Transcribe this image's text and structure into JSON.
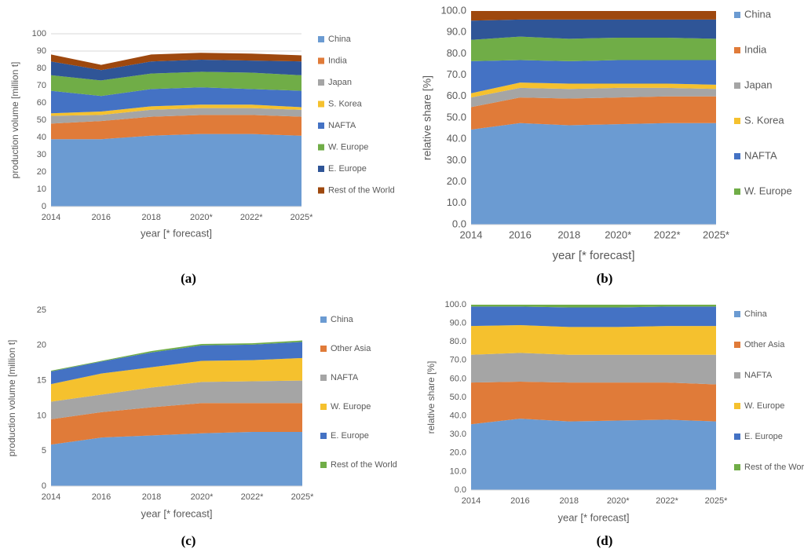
{
  "chart_data": [
    {
      "type": "area",
      "stacked": true,
      "caption": "(a)",
      "xlabel": "year [* forecast]",
      "ylabel": "production volume [million t]",
      "categories": [
        "2014",
        "2016",
        "2018",
        "2020*",
        "2022*",
        "2025*"
      ],
      "ylim": [
        0,
        100
      ],
      "yticks": [
        0,
        10,
        20,
        30,
        40,
        50,
        60,
        70,
        80,
        90,
        100
      ],
      "grid": true,
      "series": [
        {
          "name": "China",
          "color": "#6b9bd2",
          "values": [
            39,
            39,
            41,
            42,
            42,
            41
          ]
        },
        {
          "name": "India",
          "color": "#e07b39",
          "values": [
            9,
            10.5,
            11,
            11,
            11,
            11
          ]
        },
        {
          "name": "Japan",
          "color": "#a5a5a5",
          "values": [
            4.5,
            3.5,
            4,
            4,
            4,
            4
          ]
        },
        {
          "name": "S. Korea",
          "color": "#f5c12e",
          "values": [
            1.5,
            2,
            2,
            2,
            2,
            1.5
          ]
        },
        {
          "name": "NAFTA",
          "color": "#4472c4",
          "values": [
            13,
            9,
            10,
            10,
            9,
            9.5
          ]
        },
        {
          "name": "W. Europe",
          "color": "#70ad47",
          "values": [
            9,
            9,
            9,
            9,
            9.5,
            9
          ]
        },
        {
          "name": "E. Europe",
          "color": "#2f5597",
          "values": [
            8,
            6,
            7,
            7,
            7,
            8
          ]
        },
        {
          "name": "Rest of the World",
          "color": "#9e480e",
          "values": [
            4,
            3,
            4,
            4,
            4,
            3.5
          ]
        }
      ]
    },
    {
      "type": "area",
      "stacked": true,
      "caption": "(b)",
      "xlabel": "year [* forecast]",
      "ylabel": "relative share [%]",
      "categories": [
        "2014",
        "2016",
        "2018",
        "2020*",
        "2022*",
        "2025*"
      ],
      "ylim": [
        0,
        100
      ],
      "yticks": [
        {
          "value": 0,
          "label": "0.0"
        },
        {
          "value": 10,
          "label": "10.0"
        },
        {
          "value": 20,
          "label": "20.0"
        },
        {
          "value": 30,
          "label": "30.0"
        },
        {
          "value": 40,
          "label": "40.0"
        },
        {
          "value": 50,
          "label": "50.0"
        },
        {
          "value": 60,
          "label": "60.0"
        },
        {
          "value": 70,
          "label": "70.0"
        },
        {
          "value": 80,
          "label": "80.0"
        },
        {
          "value": 90,
          "label": "90.0"
        },
        {
          "value": 100,
          "label": "100.0"
        }
      ],
      "grid": false,
      "series": [
        {
          "name": "China",
          "color": "#6b9bd2",
          "values": [
            44.5,
            47.5,
            46.5,
            47,
            47.5,
            47.5
          ]
        },
        {
          "name": "India",
          "color": "#e07b39",
          "values": [
            10.5,
            12,
            12.5,
            12.5,
            12.5,
            12.5
          ]
        },
        {
          "name": "Japan",
          "color": "#a5a5a5",
          "values": [
            4.5,
            4.5,
            4.5,
            4.5,
            4,
            3.5
          ]
        },
        {
          "name": "S. Korea",
          "color": "#f5c12e",
          "values": [
            2,
            2.5,
            2.5,
            2,
            2,
            2
          ]
        },
        {
          "name": "NAFTA",
          "color": "#4472c4",
          "values": [
            15,
            10.5,
            10.5,
            11,
            11,
            11.5
          ]
        },
        {
          "name": "W. Europe",
          "color": "#70ad47",
          "values": [
            10,
            11,
            10.5,
            10.5,
            10.5,
            10
          ]
        },
        {
          "color": "#2f5597",
          "values": [
            9,
            8,
            9,
            8.5,
            8.5,
            9
          ]
        },
        {
          "color": "#9e480e",
          "values": [
            4.5,
            4,
            4,
            4,
            4,
            4
          ]
        }
      ]
    },
    {
      "type": "area",
      "stacked": true,
      "caption": "(c)",
      "xlabel": "year [* forecast]",
      "ylabel": "production volume [million t]",
      "categories": [
        "2014",
        "2016",
        "2018",
        "2020*",
        "2022*",
        "2025*"
      ],
      "ylim": [
        0,
        25
      ],
      "yticks": [
        0,
        5,
        10,
        15,
        20,
        25
      ],
      "grid": false,
      "series": [
        {
          "name": "China",
          "color": "#6b9bd2",
          "values": [
            5.9,
            6.9,
            7.2,
            7.5,
            7.7,
            7.7
          ]
        },
        {
          "name": "Other Asia",
          "color": "#e07b39",
          "values": [
            3.6,
            3.6,
            4,
            4.3,
            4.1,
            4.1
          ]
        },
        {
          "name": "NAFTA",
          "color": "#a5a5a5",
          "values": [
            2.5,
            2.5,
            2.8,
            3,
            3.1,
            3.2
          ]
        },
        {
          "name": "W. Europe",
          "color": "#f5c12e",
          "values": [
            2.5,
            3,
            2.9,
            3,
            3,
            3.2
          ]
        },
        {
          "name": "E. Europe",
          "color": "#4472c4",
          "values": [
            1.8,
            1.7,
            2.1,
            2.2,
            2.2,
            2.3
          ]
        },
        {
          "name": "Rest of the World",
          "color": "#70ad47",
          "values": [
            0.1,
            0.1,
            0.2,
            0.2,
            0.2,
            0.2
          ]
        }
      ]
    },
    {
      "type": "area",
      "stacked": true,
      "caption": "(d)",
      "xlabel": "year [* forecast]",
      "ylabel": "relative share [%]",
      "categories": [
        "2014",
        "2016",
        "2018",
        "2020*",
        "2022*",
        "2025*"
      ],
      "ylim": [
        0,
        100
      ],
      "yticks": [
        {
          "value": 0,
          "label": "0.0"
        },
        {
          "value": 10,
          "label": "10.0"
        },
        {
          "value": 20,
          "label": "20.0"
        },
        {
          "value": 30,
          "label": "30.0"
        },
        {
          "value": 40,
          "label": "40.0"
        },
        {
          "value": 50,
          "label": "50.0"
        },
        {
          "value": 60,
          "label": "60.0"
        },
        {
          "value": 70,
          "label": "70.0"
        },
        {
          "value": 80,
          "label": "80.0"
        },
        {
          "value": 90,
          "label": "90.0"
        },
        {
          "value": 100,
          "label": "100.0"
        }
      ],
      "grid": false,
      "series": [
        {
          "name": "China",
          "color": "#6b9bd2",
          "values": [
            35.5,
            38.5,
            37,
            37.5,
            38,
            37
          ]
        },
        {
          "name": "Other Asia",
          "color": "#e07b39",
          "values": [
            22.5,
            20,
            21,
            20.5,
            20,
            20
          ]
        },
        {
          "name": "NAFTA",
          "color": "#a5a5a5",
          "values": [
            15,
            15.5,
            15,
            15,
            15,
            16
          ]
        },
        {
          "name": "W. Europe",
          "color": "#f5c12e",
          "values": [
            15.5,
            15,
            15,
            15,
            15.5,
            15.5
          ]
        },
        {
          "name": "E. Europe",
          "color": "#4472c4",
          "values": [
            10.5,
            10,
            10.5,
            10.5,
            10.5,
            10.5
          ]
        },
        {
          "name": "Rest of the World",
          "color": "#70ad47",
          "values": [
            1,
            1,
            1.5,
            1.5,
            1,
            1
          ]
        }
      ]
    }
  ]
}
